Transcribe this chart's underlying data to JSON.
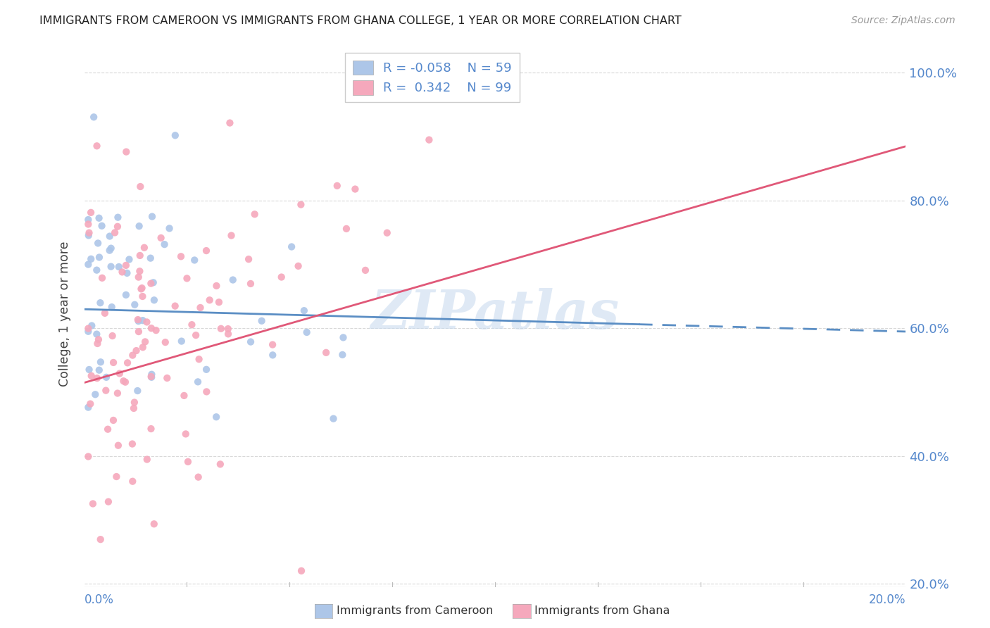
{
  "title": "IMMIGRANTS FROM CAMEROON VS IMMIGRANTS FROM GHANA COLLEGE, 1 YEAR OR MORE CORRELATION CHART",
  "source": "Source: ZipAtlas.com",
  "ylabel": "College, 1 year or more",
  "cameroon_R": -0.058,
  "cameroon_N": 59,
  "ghana_R": 0.342,
  "ghana_N": 99,
  "cameroon_color": "#adc6e8",
  "ghana_color": "#f5a8bc",
  "cameroon_line_color": "#5b8ec4",
  "ghana_line_color": "#e05878",
  "background_color": "#ffffff",
  "grid_color": "#d8d8d8",
  "watermark": "ZIPatlas",
  "xlim": [
    0.0,
    0.2
  ],
  "ylim": [
    0.195,
    1.05
  ],
  "yticks": [
    0.2,
    0.4,
    0.6,
    0.8,
    1.0
  ],
  "ytick_labels": [
    "20.0%",
    "40.0%",
    "60.0%",
    "80.0%",
    "100.0%"
  ],
  "cam_line_x0": 0.0,
  "cam_line_y0": 0.63,
  "cam_line_x1": 0.2,
  "cam_line_y1": 0.595,
  "cam_line_solid_end": 0.135,
  "gha_line_x0": 0.0,
  "gha_line_y0": 0.515,
  "gha_line_x1": 0.2,
  "gha_line_y1": 0.885,
  "legend_R1": "R = -0.058",
  "legend_N1": "N = 59",
  "legend_R2": "R =  0.342",
  "legend_N2": "N = 99",
  "bottom_label1": "Immigrants from Cameroon",
  "bottom_label2": "Immigrants from Ghana",
  "axis_label_color": "#5588cc",
  "title_color": "#222222",
  "source_color": "#999999"
}
